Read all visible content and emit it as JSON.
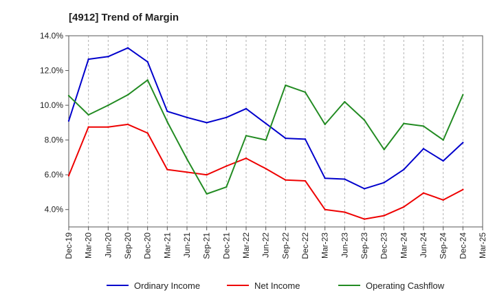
{
  "chart_data": {
    "type": "line",
    "title": "[4912]  Trend of Margin",
    "xlabel": "",
    "ylabel": "",
    "categories": [
      "Dec-19",
      "Mar-20",
      "Jun-20",
      "Sep-20",
      "Dec-20",
      "Mar-21",
      "Jun-21",
      "Sep-21",
      "Dec-21",
      "Mar-22",
      "Jun-22",
      "Sep-22",
      "Dec-22",
      "Mar-23",
      "Jun-23",
      "Sep-23",
      "Dec-23",
      "Mar-24",
      "Jun-24",
      "Sep-24",
      "Dec-24",
      "Mar-25"
    ],
    "y_ticks": [
      "4.0%",
      "6.0%",
      "8.0%",
      "10.0%",
      "12.0%",
      "14.0%"
    ],
    "y_tick_values": [
      4,
      6,
      8,
      10,
      12,
      14
    ],
    "ylim": [
      3,
      14
    ],
    "grid": "vertical dashed",
    "legend_position": "bottom",
    "series": [
      {
        "name": "Ordinary Income",
        "color": "#0000cc",
        "values": [
          9.1,
          12.65,
          12.8,
          13.3,
          12.5,
          9.65,
          9.3,
          9.0,
          9.3,
          9.8,
          8.95,
          8.1,
          8.05,
          5.8,
          5.75,
          5.2,
          5.55,
          6.3,
          7.5,
          6.8,
          7.85,
          null
        ]
      },
      {
        "name": "Net Income",
        "color": "#ee0000",
        "values": [
          5.95,
          8.75,
          8.75,
          8.9,
          8.4,
          6.3,
          6.15,
          6.0,
          6.5,
          6.95,
          6.35,
          5.7,
          5.65,
          4.0,
          3.85,
          3.45,
          3.65,
          4.15,
          4.95,
          4.55,
          5.15,
          null
        ]
      },
      {
        "name": "Operating Cashflow",
        "color": "#228B22",
        "values": [
          10.55,
          9.45,
          10.0,
          10.6,
          11.45,
          9.05,
          6.9,
          4.9,
          5.3,
          8.25,
          8.0,
          11.15,
          10.75,
          8.9,
          10.2,
          9.15,
          7.45,
          8.95,
          8.8,
          8.0,
          10.6,
          null
        ]
      }
    ]
  }
}
